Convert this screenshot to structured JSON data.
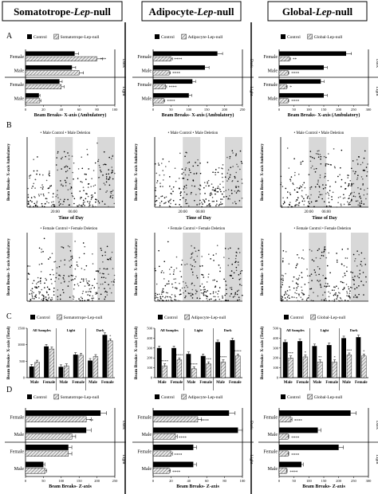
{
  "columns": [
    {
      "title_plain": "Somatotrope-",
      "title_italic": "Lep",
      "title_tail": "-null",
      "legend_control": "Control",
      "legend_null": "Somatotrope-Lep-null"
    },
    {
      "title_plain": "Adipocyte-",
      "title_italic": "Lep",
      "title_tail": "-null",
      "legend_control": "Control",
      "legend_null": "Adipocyte-Lep-null"
    },
    {
      "title_plain": "Global-",
      "title_italic": "Lep",
      "title_tail": "-null",
      "legend_control": "Control",
      "legend_null": "Global-Lep-null"
    }
  ],
  "panel_letters": [
    "A",
    "B",
    "C",
    "D"
  ],
  "labels": {
    "xaxis_A": "Beam Breaks- X-axis (Ambulatory)",
    "xaxis_D": "Beam Breaks- Z-axis",
    "yaxis_B": "Beam Breaks- X-axis Ambulatory",
    "yaxis_C": "Beam Breaks- X-axis (Total)",
    "time_of_day": "Time of Day",
    "male_control": "Male Control",
    "male_deletion": "Male Deletion",
    "female_control": "Female Control",
    "female_deletion": "Female Deletion",
    "dark": "Dark",
    "light": "Light",
    "female": "Female",
    "male": "Male",
    "all_samples": "All Samples",
    "t2000": "20:00",
    "t0600": "06:00"
  },
  "chart_data": [
    {
      "panel": "A",
      "column": "Somatotrope-Lep-null",
      "type": "bar",
      "orientation": "horizontal",
      "categories": [
        "Female Dark",
        "Male Dark",
        "Female Light",
        "Male Light"
      ],
      "series": [
        {
          "name": "Control",
          "values": [
            55,
            52,
            38,
            15
          ]
        },
        {
          "name": "Somatotrope-Lep-null",
          "values": [
            80,
            60,
            40,
            16
          ]
        }
      ],
      "significance": [
        "***",
        "",
        "",
        ""
      ],
      "xlim": [
        0,
        100
      ],
      "xticks": [
        0,
        20,
        40,
        60,
        80,
        100
      ]
    },
    {
      "panel": "A",
      "column": "Adipocyte-Lep-null",
      "type": "bar",
      "orientation": "horizontal",
      "categories": [
        "Female Dark",
        "Male Dark",
        "Female Light",
        "Male Light"
      ],
      "series": [
        {
          "name": "Control",
          "values": [
            180,
            145,
            110,
            100
          ]
        },
        {
          "name": "Adipocyte-Lep-null",
          "values": [
            50,
            45,
            35,
            30
          ]
        }
      ],
      "significance": [
        "****",
        "****",
        "****",
        "****"
      ],
      "xlim": [
        0,
        250
      ],
      "xticks": [
        0,
        50,
        100,
        150,
        200,
        250
      ]
    },
    {
      "panel": "A",
      "column": "Global-Lep-null",
      "type": "bar",
      "orientation": "horizontal",
      "categories": [
        "Female Dark",
        "Male Dark",
        "Female Light",
        "Male Light"
      ],
      "series": [
        {
          "name": "Control",
          "values": [
            225,
            150,
            140,
            150
          ]
        },
        {
          "name": "Global-Lep-null",
          "values": [
            35,
            30,
            25,
            30
          ]
        }
      ],
      "significance": [
        "**",
        "****",
        "*",
        "****"
      ],
      "xlim": [
        0,
        300
      ],
      "xticks": [
        0,
        50,
        100,
        150,
        200,
        250,
        300
      ]
    },
    {
      "panel": "C",
      "column": "Somatotrope-Lep-null",
      "type": "bar",
      "groups": [
        "All Samples",
        "Light",
        "Dark"
      ],
      "categories": [
        "Male",
        "Female",
        "Male",
        "Female",
        "Male",
        "Female"
      ],
      "series": [
        {
          "name": "Control",
          "values": [
            340,
            950,
            330,
            700,
            520,
            1300
          ]
        },
        {
          "name": "Somatotrope-Lep-null",
          "values": [
            470,
            870,
            360,
            680,
            640,
            1120
          ]
        }
      ],
      "significance": [
        "",
        "",
        "",
        "",
        "",
        "*"
      ],
      "ylim": [
        0,
        1500
      ],
      "yticks": [
        0,
        500,
        1000,
        1500
      ]
    },
    {
      "panel": "C",
      "column": "Adipocyte-Lep-null",
      "type": "bar",
      "groups": [
        "All Samples",
        "Light",
        "Dark"
      ],
      "categories": [
        "Male",
        "Female",
        "Male",
        "Female",
        "Male",
        "Female"
      ],
      "series": [
        {
          "name": "Control",
          "values": [
            300,
            300,
            240,
            220,
            360,
            380
          ]
        },
        {
          "name": "Adipocyte-Lep-null",
          "values": [
            120,
            180,
            90,
            140,
            160,
            220
          ]
        }
      ],
      "significance": [
        "****",
        "****",
        "****",
        "***",
        "****",
        "****"
      ],
      "ylim": [
        0,
        500
      ],
      "yticks": [
        0,
        100,
        200,
        300,
        400,
        500
      ]
    },
    {
      "panel": "C",
      "column": "Global-Lep-null",
      "type": "bar",
      "groups": [
        "All Samples",
        "Light",
        "Dark"
      ],
      "categories": [
        "Male",
        "Female",
        "Male",
        "Female",
        "Male",
        "Female"
      ],
      "series": [
        {
          "name": "Control",
          "values": [
            360,
            370,
            320,
            330,
            400,
            410
          ]
        },
        {
          "name": "Global-Lep-null",
          "values": [
            200,
            210,
            160,
            160,
            230,
            220
          ]
        }
      ],
      "significance": [
        "***",
        "*",
        "**",
        "*",
        "***",
        "*"
      ],
      "ylim": [
        0,
        500
      ],
      "yticks": [
        0,
        100,
        200,
        300,
        400,
        500
      ]
    },
    {
      "panel": "D",
      "column": "Somatotrope-Lep-null",
      "type": "bar",
      "orientation": "horizontal",
      "categories": [
        "Female Dark",
        "Male Dark",
        "Female Light",
        "Male Light"
      ],
      "series": [
        {
          "name": "Control",
          "values": [
            210,
            170,
            120,
            50
          ]
        },
        {
          "name": "Somatotrope-Lep-null",
          "values": [
            170,
            130,
            120,
            55
          ]
        }
      ],
      "significance": [
        "**",
        "",
        "",
        ""
      ],
      "xlim": [
        0,
        250
      ],
      "xticks": [
        0,
        50,
        100,
        150,
        200,
        250
      ]
    },
    {
      "panel": "D",
      "column": "Adipocyte-Lep-null",
      "type": "bar",
      "orientation": "horizontal",
      "categories": [
        "Female Dark",
        "Male Dark",
        "Female Light",
        "Male Light"
      ],
      "series": [
        {
          "name": "Control",
          "values": [
            85,
            95,
            45,
            45
          ]
        },
        {
          "name": "Adipocyte-Lep-null",
          "values": [
            50,
            25,
            20,
            18
          ]
        }
      ],
      "significance": [
        "****",
        "****",
        "****",
        "****"
      ],
      "xlim": [
        0,
        100
      ],
      "xticks": [
        0,
        20,
        40,
        60,
        80,
        100
      ]
    },
    {
      "panel": "D",
      "column": "Global-Lep-null",
      "type": "bar",
      "orientation": "horizontal",
      "categories": [
        "Female Dark",
        "Male Dark",
        "Female Light",
        "Male Light"
      ],
      "series": [
        {
          "name": "Control",
          "values": [
            240,
            130,
            200,
            75
          ]
        },
        {
          "name": "Global-Lep-null",
          "values": [
            40,
            30,
            30,
            25
          ]
        }
      ],
      "significance": [
        "****",
        "****",
        "****",
        "****"
      ],
      "xlim": [
        0,
        300
      ],
      "xticks": [
        0,
        50,
        100,
        150,
        200,
        250,
        300
      ]
    },
    {
      "panel": "B",
      "type": "scatter",
      "description_units": "beam breaks per time bin over 24h",
      "x": [
        "20:00",
        "06:00"
      ],
      "series": [
        {
          "name": "Male Control"
        },
        {
          "name": "Male Deletion"
        },
        {
          "name": "Female Control"
        },
        {
          "name": "Female Deletion"
        }
      ]
    }
  ]
}
